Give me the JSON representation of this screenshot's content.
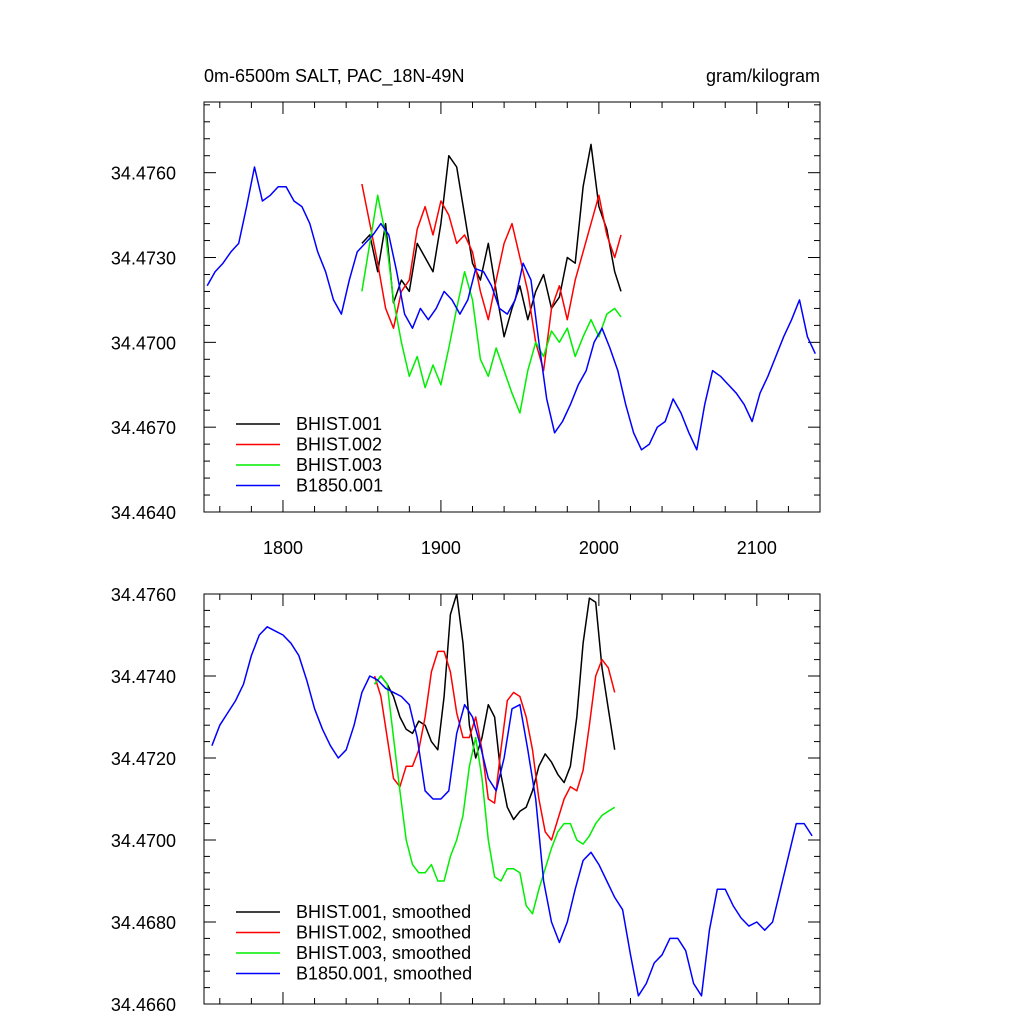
{
  "chart_data": [
    {
      "type": "line",
      "title": "0m-6500m SALT, PAC_18N-49N",
      "units": "gram/kilogram",
      "xlim": [
        1750,
        2140
      ],
      "ylim": [
        34.464,
        34.4785
      ],
      "xticks": [
        1800,
        1900,
        2000,
        2100
      ],
      "yticks": [
        34.464,
        34.467,
        34.47,
        34.473,
        34.476
      ],
      "ytick_labels": [
        "34.4640",
        "34.4670",
        "34.4700",
        "34.4730",
        "34.4760"
      ],
      "legend": "bottom-left",
      "series": [
        {
          "name": "BHIST.001",
          "color": "#000000",
          "x": [
            1850,
            1855,
            1860,
            1865,
            1870,
            1875,
            1880,
            1885,
            1890,
            1895,
            1900,
            1905,
            1910,
            1915,
            1920,
            1925,
            1930,
            1935,
            1940,
            1945,
            1950,
            1955,
            1960,
            1965,
            1970,
            1975,
            1980,
            1985,
            1990,
            1995,
            2000,
            2005,
            2010,
            2014
          ],
          "y": [
            34.4735,
            34.4738,
            34.4725,
            34.4742,
            34.4714,
            34.4722,
            34.4718,
            34.4735,
            34.473,
            34.4725,
            34.4742,
            34.4766,
            34.4762,
            34.4745,
            34.4728,
            34.4722,
            34.4735,
            34.4718,
            34.4702,
            34.4712,
            34.472,
            34.4708,
            34.4718,
            34.4724,
            34.4712,
            34.4716,
            34.473,
            34.4728,
            34.4755,
            34.477,
            34.4748,
            34.474,
            34.4725,
            34.4718
          ]
        },
        {
          "name": "BHIST.002",
          "color": "#ff0000",
          "x": [
            1850,
            1855,
            1860,
            1865,
            1870,
            1875,
            1880,
            1885,
            1890,
            1895,
            1900,
            1905,
            1910,
            1915,
            1920,
            1925,
            1930,
            1935,
            1940,
            1945,
            1950,
            1955,
            1960,
            1965,
            1970,
            1975,
            1980,
            1985,
            1990,
            1995,
            2000,
            2005,
            2010,
            2014
          ],
          "y": [
            34.4756,
            34.4742,
            34.4728,
            34.4712,
            34.4705,
            34.4718,
            34.4722,
            34.474,
            34.4748,
            34.4738,
            34.475,
            34.4745,
            34.4735,
            34.4738,
            34.4732,
            34.4718,
            34.4708,
            34.4722,
            34.4735,
            34.4742,
            34.473,
            34.4718,
            34.47,
            34.469,
            34.4712,
            34.472,
            34.4708,
            34.4722,
            34.4732,
            34.4742,
            34.4752,
            34.4738,
            34.473,
            34.4738
          ]
        },
        {
          "name": "BHIST.003",
          "color": "#00ee00",
          "x": [
            1850,
            1855,
            1860,
            1865,
            1870,
            1875,
            1880,
            1885,
            1890,
            1895,
            1900,
            1905,
            1910,
            1915,
            1920,
            1925,
            1930,
            1935,
            1940,
            1945,
            1950,
            1955,
            1960,
            1965,
            1970,
            1975,
            1980,
            1985,
            1990,
            1995,
            2000,
            2005,
            2010,
            2014
          ],
          "y": [
            34.4718,
            34.4735,
            34.4752,
            34.4738,
            34.4715,
            34.47,
            34.4688,
            34.4695,
            34.4684,
            34.4692,
            34.4685,
            34.4698,
            34.4712,
            34.4725,
            34.4715,
            34.4694,
            34.4688,
            34.4698,
            34.469,
            34.4682,
            34.4675,
            34.469,
            34.47,
            34.4695,
            34.4704,
            34.47,
            34.4705,
            34.4695,
            34.4702,
            34.4708,
            34.4702,
            34.471,
            34.4712,
            34.4709
          ]
        },
        {
          "name": "B1850.001",
          "color": "#0000ff",
          "x": [
            1752,
            1757,
            1762,
            1767,
            1772,
            1777,
            1782,
            1787,
            1792,
            1797,
            1802,
            1807,
            1812,
            1817,
            1822,
            1827,
            1832,
            1837,
            1842,
            1847,
            1852,
            1857,
            1862,
            1867,
            1872,
            1877,
            1882,
            1887,
            1892,
            1897,
            1902,
            1907,
            1912,
            1917,
            1922,
            1927,
            1932,
            1937,
            1942,
            1947,
            1952,
            1957,
            1962,
            1967,
            1972,
            1977,
            1982,
            1987,
            1992,
            1997,
            2002,
            2007,
            2012,
            2017,
            2022,
            2027,
            2032,
            2037,
            2042,
            2047,
            2052,
            2057,
            2062,
            2067,
            2072,
            2077,
            2082,
            2087,
            2092,
            2097,
            2102,
            2107,
            2112,
            2117,
            2122,
            2127,
            2132,
            2137
          ],
          "y": [
            34.472,
            34.4725,
            34.4728,
            34.4732,
            34.4735,
            34.4748,
            34.4762,
            34.475,
            34.4752,
            34.4755,
            34.4755,
            34.475,
            34.4748,
            34.4742,
            34.4732,
            34.4725,
            34.4715,
            34.471,
            34.4722,
            34.4732,
            34.4735,
            34.4738,
            34.4742,
            34.4738,
            34.4725,
            34.471,
            34.4705,
            34.4712,
            34.4708,
            34.4712,
            34.4718,
            34.4715,
            34.471,
            34.4715,
            34.4726,
            34.4725,
            34.472,
            34.4712,
            34.471,
            34.4715,
            34.4728,
            34.4722,
            34.47,
            34.468,
            34.4668,
            34.4672,
            34.4678,
            34.4685,
            34.469,
            34.47,
            34.4705,
            34.4698,
            34.469,
            34.4678,
            34.4668,
            34.4662,
            34.4664,
            34.467,
            34.4672,
            34.468,
            34.4675,
            34.4668,
            34.4662,
            34.4678,
            34.469,
            34.4688,
            34.4685,
            34.4682,
            34.4678,
            34.4672,
            34.4682,
            34.4688,
            34.4695,
            34.4702,
            34.4708,
            34.4715,
            34.4702,
            34.4696
          ]
        }
      ]
    },
    {
      "type": "line",
      "xlim": [
        1750,
        2140
      ],
      "ylim": [
        34.466,
        34.476
      ],
      "xticks": [
        1800,
        1900,
        2000,
        2100
      ],
      "yticks": [
        34.466,
        34.468,
        34.47,
        34.472,
        34.474,
        34.476
      ],
      "ytick_labels": [
        "34.4660",
        "34.4680",
        "34.4700",
        "34.4720",
        "34.4740",
        "34.4760"
      ],
      "legend": "bottom-left",
      "series": [
        {
          "name": "BHIST.001, smoothed",
          "color": "#000000",
          "x": [
            1858,
            1862,
            1866,
            1870,
            1874,
            1878,
            1882,
            1886,
            1890,
            1894,
            1898,
            1902,
            1906,
            1910,
            1914,
            1918,
            1922,
            1926,
            1930,
            1934,
            1938,
            1942,
            1946,
            1950,
            1954,
            1958,
            1962,
            1966,
            1970,
            1974,
            1978,
            1982,
            1986,
            1990,
            1994,
            1998,
            2002,
            2006,
            2010
          ],
          "y": [
            34.4738,
            34.474,
            34.4738,
            34.4735,
            34.473,
            34.4727,
            34.4726,
            34.4729,
            34.4728,
            34.4724,
            34.4722,
            34.4735,
            34.4755,
            34.476,
            34.4748,
            34.4728,
            34.472,
            34.4725,
            34.4733,
            34.473,
            34.4716,
            34.4708,
            34.4705,
            34.4707,
            34.4708,
            34.4712,
            34.4718,
            34.4721,
            34.4719,
            34.4716,
            34.4714,
            34.4718,
            34.473,
            34.4748,
            34.4759,
            34.4758,
            34.4742,
            34.4732,
            34.4722
          ]
        },
        {
          "name": "BHIST.002, smoothed",
          "color": "#ff0000",
          "x": [
            1858,
            1862,
            1866,
            1870,
            1874,
            1878,
            1882,
            1886,
            1890,
            1894,
            1898,
            1902,
            1906,
            1910,
            1914,
            1918,
            1922,
            1926,
            1930,
            1934,
            1938,
            1942,
            1946,
            1950,
            1954,
            1958,
            1962,
            1966,
            1970,
            1974,
            1978,
            1982,
            1986,
            1990,
            1994,
            1998,
            2002,
            2006,
            2010
          ],
          "y": [
            34.474,
            34.4735,
            34.4725,
            34.4715,
            34.4713,
            34.4718,
            34.4718,
            34.4722,
            34.473,
            34.4741,
            34.4746,
            34.4746,
            34.4741,
            34.4731,
            34.4725,
            34.4725,
            34.473,
            34.4722,
            34.471,
            34.4709,
            34.4722,
            34.4734,
            34.4736,
            34.4735,
            34.473,
            34.4722,
            34.471,
            34.4702,
            34.47,
            34.4705,
            34.471,
            34.4713,
            34.4712,
            34.4717,
            34.4728,
            34.474,
            34.4744,
            34.4742,
            34.4736
          ]
        },
        {
          "name": "BHIST.003, smoothed",
          "color": "#00ee00",
          "x": [
            1858,
            1862,
            1866,
            1870,
            1874,
            1878,
            1882,
            1886,
            1890,
            1894,
            1898,
            1902,
            1906,
            1910,
            1914,
            1918,
            1922,
            1926,
            1930,
            1934,
            1938,
            1942,
            1946,
            1950,
            1954,
            1958,
            1962,
            1966,
            1970,
            1974,
            1978,
            1982,
            1986,
            1990,
            1994,
            1998,
            2002,
            2006,
            2010
          ],
          "y": [
            34.4738,
            34.474,
            34.4738,
            34.4725,
            34.4712,
            34.47,
            34.4694,
            34.4692,
            34.4692,
            34.4694,
            34.469,
            34.469,
            34.4696,
            34.47,
            34.4706,
            34.4718,
            34.4725,
            34.4715,
            34.47,
            34.4691,
            34.469,
            34.4693,
            34.4693,
            34.4692,
            34.4684,
            34.4682,
            34.4688,
            34.4693,
            34.4698,
            34.4702,
            34.4704,
            34.4704,
            34.47,
            34.4699,
            34.4701,
            34.4704,
            34.4706,
            34.4707,
            34.4708
          ]
        },
        {
          "name": "B1850.001, smoothed",
          "color": "#0000ff",
          "x": [
            1755,
            1760,
            1765,
            1770,
            1775,
            1780,
            1785,
            1790,
            1795,
            1800,
            1805,
            1810,
            1815,
            1820,
            1825,
            1830,
            1835,
            1840,
            1845,
            1850,
            1855,
            1860,
            1865,
            1870,
            1875,
            1880,
            1885,
            1890,
            1895,
            1900,
            1905,
            1910,
            1915,
            1920,
            1925,
            1930,
            1935,
            1940,
            1945,
            1950,
            1955,
            1960,
            1965,
            1970,
            1975,
            1980,
            1985,
            1990,
            1995,
            2000,
            2005,
            2010,
            2015,
            2020,
            2025,
            2030,
            2035,
            2040,
            2045,
            2050,
            2055,
            2060,
            2065,
            2070,
            2075,
            2080,
            2085,
            2090,
            2095,
            2100,
            2105,
            2110,
            2115,
            2120,
            2125,
            2130,
            2135
          ],
          "y": [
            34.4723,
            34.4728,
            34.4731,
            34.4734,
            34.4738,
            34.4745,
            34.475,
            34.4752,
            34.4751,
            34.475,
            34.4748,
            34.4745,
            34.4739,
            34.4732,
            34.4727,
            34.4723,
            34.472,
            34.4722,
            34.4728,
            34.4736,
            34.474,
            34.4739,
            34.4737,
            34.4736,
            34.4735,
            34.4733,
            34.4725,
            34.4712,
            34.471,
            34.471,
            34.4712,
            34.4726,
            34.4733,
            34.473,
            34.4723,
            34.4715,
            34.4712,
            34.472,
            34.4732,
            34.4733,
            34.4722,
            34.471,
            34.469,
            34.468,
            34.4675,
            34.468,
            34.4688,
            34.4695,
            34.4697,
            34.4694,
            34.469,
            34.4686,
            34.4683,
            34.4672,
            34.4662,
            34.4665,
            34.467,
            34.4672,
            34.4676,
            34.4676,
            34.4673,
            34.4665,
            34.4662,
            34.4678,
            34.4688,
            34.4688,
            34.4684,
            34.4681,
            34.4679,
            34.468,
            34.4678,
            34.468,
            34.4688,
            34.4696,
            34.4704,
            34.4704,
            34.4701
          ]
        }
      ]
    }
  ]
}
